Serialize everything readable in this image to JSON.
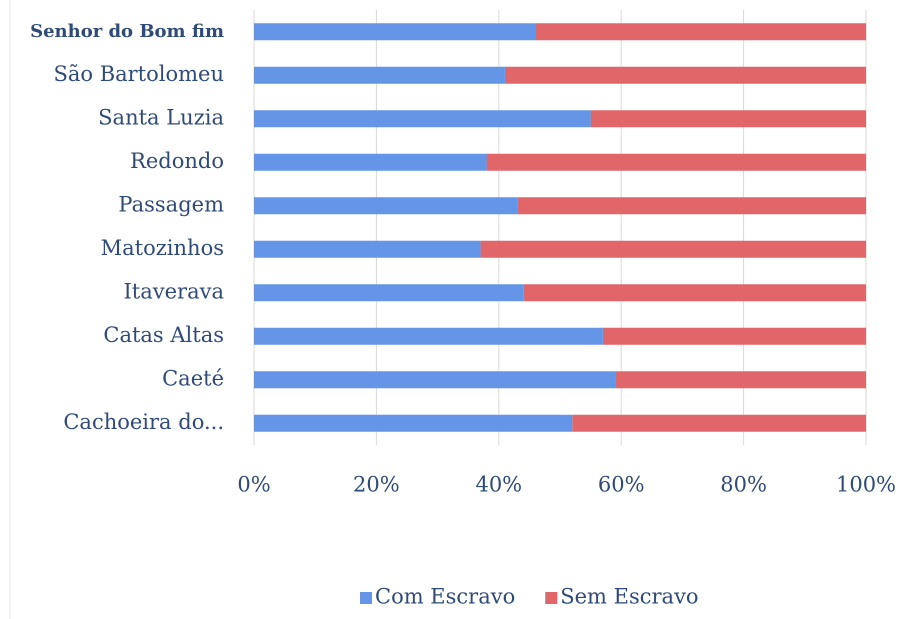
{
  "chart_data": {
    "type": "stacked-barh",
    "categories": [
      "Senhor do Bom fim",
      "São Bartolomeu",
      "Santa Luzia",
      "Redondo",
      "Passagem",
      "Matozinhos",
      "Itaverava",
      "Catas Altas",
      "Caeté",
      "Cachoeira do..."
    ],
    "series": [
      {
        "name": "Com Escravo",
        "color": "#6495e6",
        "values": [
          46,
          41,
          55,
          38,
          43,
          37,
          44,
          57,
          59,
          52
        ]
      },
      {
        "name": "Sem Escravo",
        "color": "#e0666a",
        "values": [
          54,
          59,
          45,
          62,
          57,
          63,
          56,
          43,
          41,
          48
        ]
      }
    ],
    "xlim": [
      0,
      100
    ],
    "xticks": [
      {
        "value": 0,
        "label": "0%"
      },
      {
        "value": 20,
        "label": "20%"
      },
      {
        "value": 40,
        "label": "40%"
      },
      {
        "value": 60,
        "label": "60%"
      },
      {
        "value": 80,
        "label": "80%"
      },
      {
        "value": 100,
        "label": "100%"
      }
    ],
    "grid": true,
    "legend": "bottom"
  }
}
